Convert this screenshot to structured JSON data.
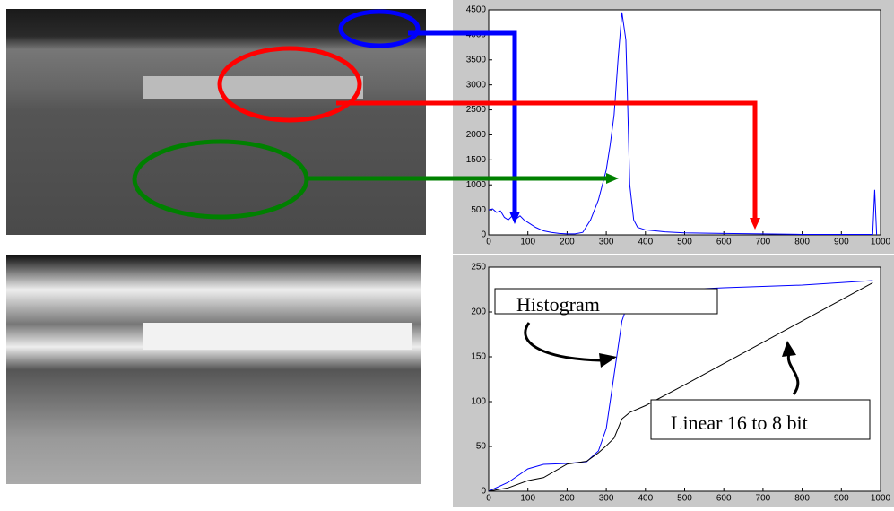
{
  "chart_data": [
    {
      "type": "line",
      "xlim": [
        0,
        1000
      ],
      "ylim": [
        0,
        4500
      ],
      "xticks": [
        0,
        100,
        200,
        300,
        400,
        500,
        600,
        700,
        800,
        900,
        1000
      ],
      "yticks": [
        0,
        500,
        1000,
        1500,
        2000,
        2500,
        3000,
        3500,
        4000,
        4500
      ],
      "x": [
        0,
        10,
        20,
        30,
        40,
        50,
        60,
        70,
        80,
        90,
        100,
        120,
        140,
        160,
        180,
        200,
        220,
        240,
        260,
        280,
        300,
        310,
        320,
        330,
        340,
        350,
        355,
        360,
        370,
        380,
        400,
        450,
        500,
        600,
        700,
        800,
        900,
        980,
        985,
        990
      ],
      "series": [
        {
          "color": "#0000ff",
          "values": [
            500,
            520,
            450,
            480,
            350,
            300,
            380,
            320,
            380,
            300,
            250,
            150,
            80,
            50,
            30,
            20,
            20,
            50,
            300,
            700,
            1300,
            1800,
            2400,
            3500,
            4450,
            3900,
            2500,
            1000,
            300,
            150,
            100,
            60,
            40,
            30,
            20,
            10,
            10,
            10,
            900,
            0
          ]
        }
      ]
    },
    {
      "type": "line",
      "xlim": [
        0,
        1000
      ],
      "ylim": [
        0,
        250
      ],
      "xticks": [
        0,
        100,
        200,
        300,
        400,
        500,
        600,
        700,
        800,
        900,
        1000
      ],
      "yticks": [
        0,
        50,
        100,
        150,
        200,
        250
      ],
      "x": [
        0,
        50,
        100,
        140,
        200,
        250,
        280,
        300,
        320,
        340,
        360,
        400,
        500,
        600,
        800,
        980
      ],
      "series": [
        {
          "name": "Histogram",
          "color": "#0000ff",
          "values": [
            0,
            10,
            25,
            30,
            31,
            33,
            45,
            70,
            130,
            190,
            215,
            220,
            225,
            227,
            230,
            235
          ]
        },
        {
          "name": "Linear 16 to 8 bit",
          "color": "#000000",
          "values": [
            0,
            3.8,
            11.9,
            15.2,
            30.3,
            33.5,
            42.9,
            50.7,
            59.3,
            80.7,
            87.9,
            95.5,
            118.7,
            142.4,
            189.9,
            232.6
          ]
        }
      ]
    }
  ]
}
